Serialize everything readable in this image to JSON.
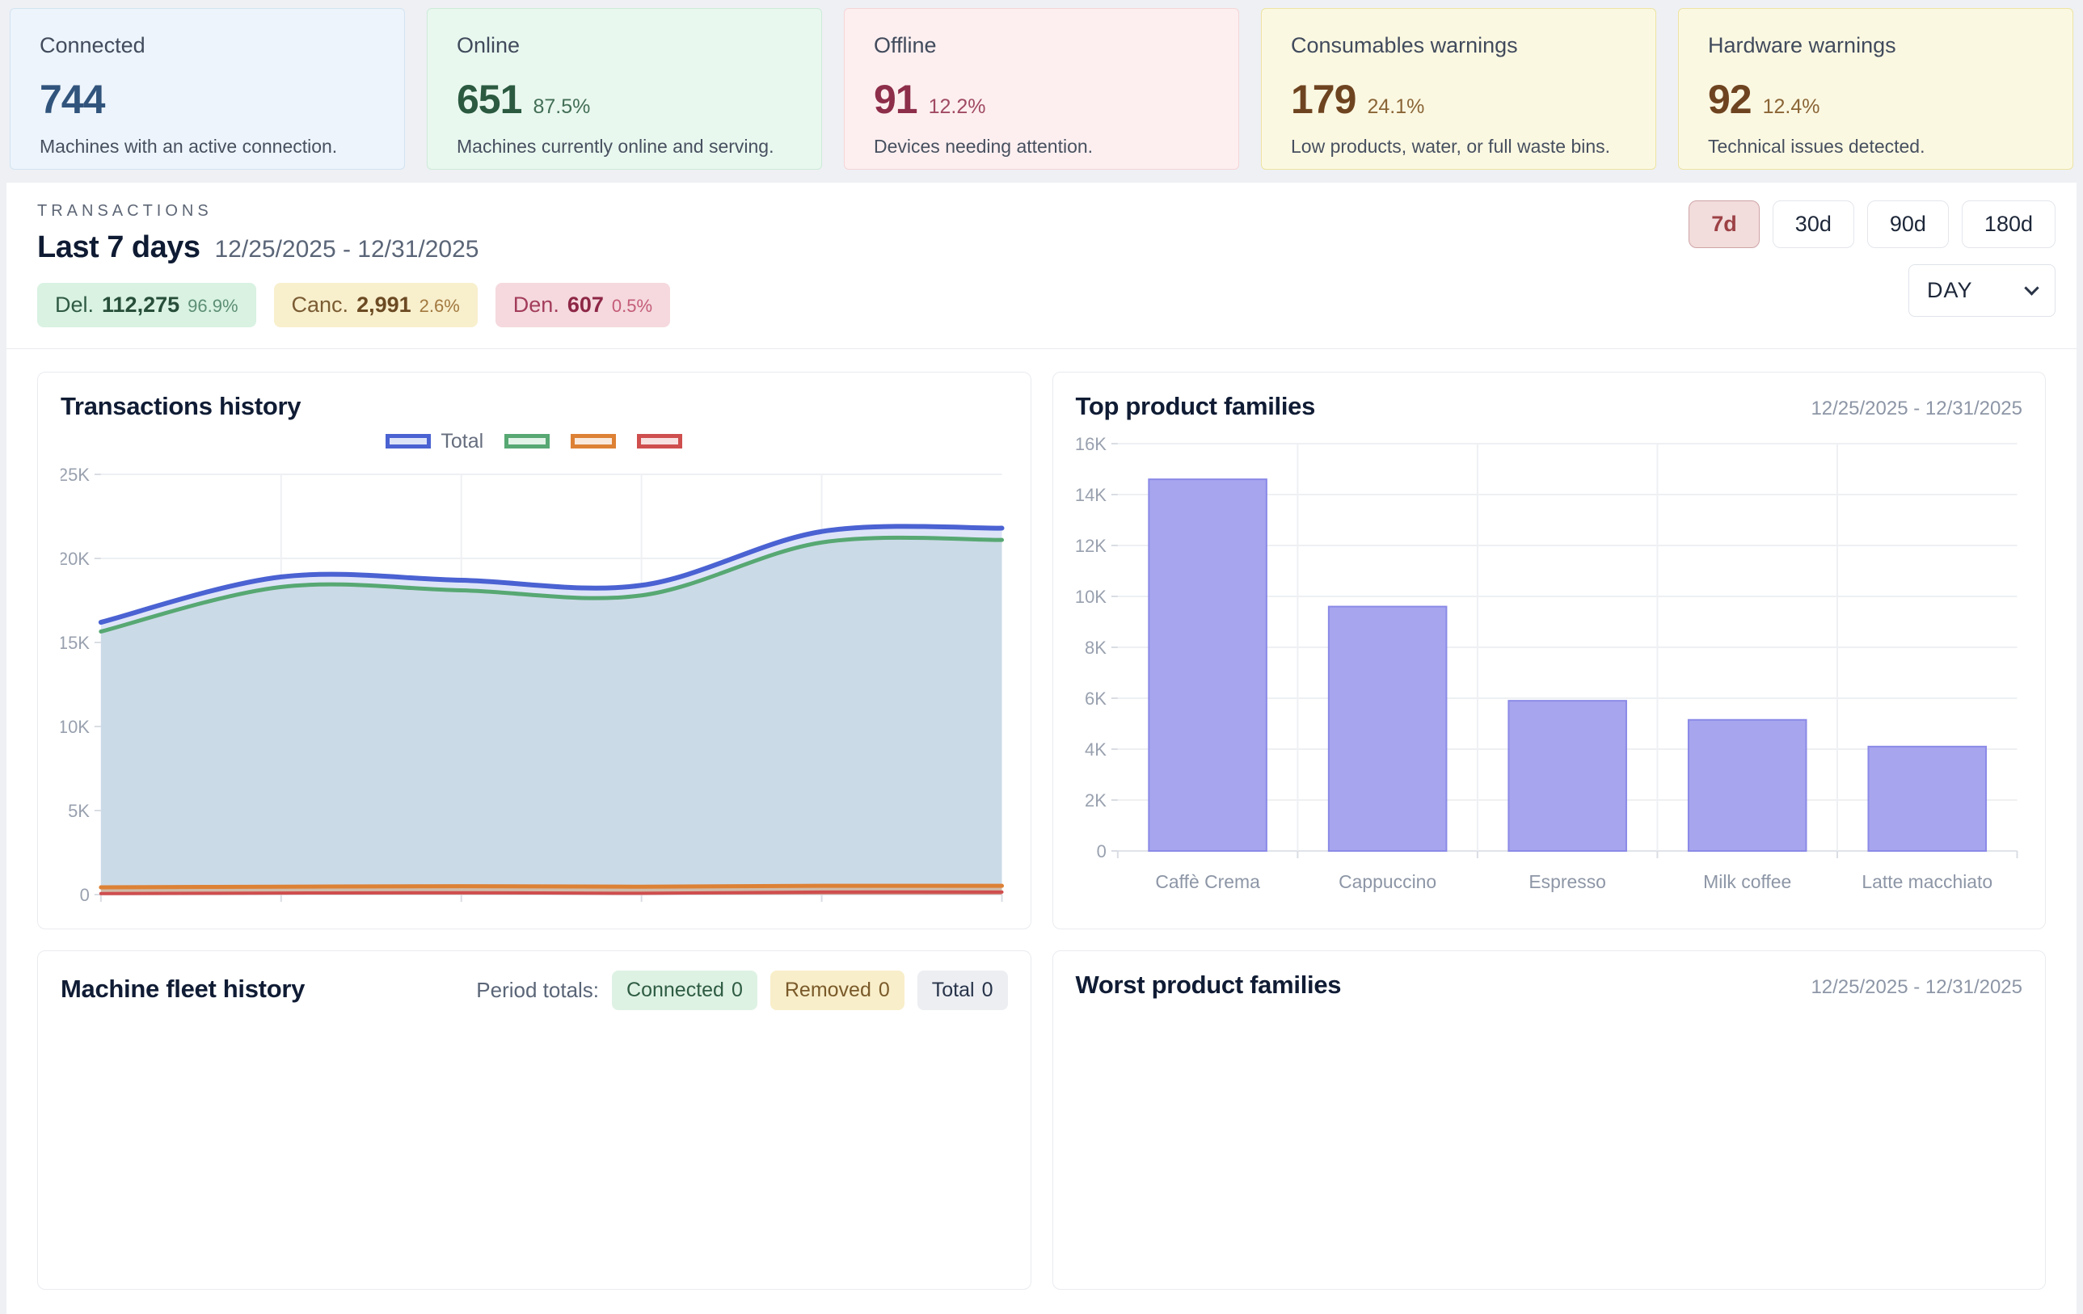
{
  "stats": [
    {
      "label": "Connected",
      "value": "744",
      "pct": "",
      "desc": "Machines with an active connection.",
      "colors": {
        "bg": "#edf4fb",
        "border": "#d3e3f1",
        "value": "#31547c",
        "pct": "#31547c"
      }
    },
    {
      "label": "Online",
      "value": "651",
      "pct": "87.5%",
      "desc": "Machines currently online and serving.",
      "colors": {
        "bg": "#e9f8ef",
        "border": "#cdebd8",
        "value": "#2b5a40",
        "pct": "#426e55"
      }
    },
    {
      "label": "Offline",
      "value": "91",
      "pct": "12.2%",
      "desc": "Devices needing attention.",
      "colors": {
        "bg": "#fdeff0",
        "border": "#f5d5d7",
        "value": "#8d2e4a",
        "pct": "#a04a63"
      }
    },
    {
      "label": "Consumables warnings",
      "value": "179",
      "pct": "24.1%",
      "desc": "Low products, water, or full waste bins.",
      "colors": {
        "bg": "#fbf8e2",
        "border": "#ede4a2",
        "value": "#6e4420",
        "pct": "#8a6536"
      }
    },
    {
      "label": "Hardware warnings",
      "value": "92",
      "pct": "12.4%",
      "desc": "Technical issues detected.",
      "colors": {
        "bg": "#fbf8e2",
        "border": "#ede4a2",
        "value": "#6e4420",
        "pct": "#8a6536"
      }
    }
  ],
  "transactions_header": {
    "eyebrow": "TRANSACTIONS",
    "title": "Last 7 days",
    "date_range": "12/25/2025 - 12/31/2025",
    "badges": [
      {
        "label": "Del.",
        "value": "112,275",
        "pct": "96.9%",
        "colors": {
          "bg": "#d9f2e2",
          "label": "#2f5a43",
          "value": "#274e39",
          "pct": "#5d8f74"
        }
      },
      {
        "label": "Canc.",
        "value": "2,991",
        "pct": "2.6%",
        "colors": {
          "bg": "#f8efcd",
          "label": "#7a5c33",
          "value": "#6b4a23",
          "pct": "#a2793f"
        }
      },
      {
        "label": "Den.",
        "value": "607",
        "pct": "0.5%",
        "colors": {
          "bg": "#f5d9de",
          "label": "#a33c5c",
          "value": "#8e2747",
          "pct": "#c45c77"
        }
      }
    ],
    "range_buttons": [
      {
        "label": "7d",
        "active": true
      },
      {
        "label": "30d",
        "active": false
      },
      {
        "label": "90d",
        "active": false
      },
      {
        "label": "180d",
        "active": false
      }
    ],
    "granularity": {
      "value": "DAY"
    }
  },
  "chart_data": [
    {
      "id": "transactions_history",
      "type": "area",
      "title": "Transactions history",
      "x": [
        1,
        2,
        3,
        4,
        5,
        6
      ],
      "x_axis_labels_visible": false,
      "series": [
        {
          "name": "Total",
          "color": "#4a62d2",
          "fill": "#dee4f8",
          "legend_fill": "#dee4f8",
          "width": 6,
          "values": [
            16200,
            18900,
            18700,
            18400,
            21600,
            21800
          ]
        },
        {
          "name": "",
          "color": "#57a873",
          "fill": "#cbdae7",
          "legend_fill": "#e3f3e8",
          "width": 5,
          "values": [
            15650,
            18300,
            18100,
            17800,
            20950,
            21100
          ]
        },
        {
          "name": "",
          "color": "#dd8135",
          "fill": "rgba(221,129,53,0.35)",
          "legend_fill": "#f9e9dc",
          "width": 5,
          "values": [
            430,
            470,
            500,
            470,
            520,
            520
          ]
        },
        {
          "name": "",
          "color": "#cf4e4e",
          "fill": "rgba(207,78,78,0.35)",
          "legend_fill": "#f8e1e1",
          "width": 4,
          "values": [
            60,
            90,
            110,
            80,
            150,
            150
          ]
        }
      ],
      "ylim": [
        0,
        25000
      ],
      "ytick_values": [
        0,
        5000,
        10000,
        15000,
        20000,
        25000
      ],
      "ytick_labels": [
        "0",
        "5K",
        "10K",
        "15K",
        "20K",
        "25K"
      ],
      "grid": true,
      "legend_position": "top"
    },
    {
      "id": "top_product_families",
      "type": "bar",
      "title": "Top product families",
      "date_range": "12/25/2025 - 12/31/2025",
      "categories": [
        "Caffè Crema",
        "Cappuccino",
        "Espresso",
        "Milk coffee",
        "Latte macchiato"
      ],
      "values": [
        14600,
        9600,
        5900,
        5150,
        4100
      ],
      "bar_color": "#a6a5ee",
      "bar_border": "#8b8ae7",
      "ylim": [
        0,
        16000
      ],
      "ytick_values": [
        0,
        2000,
        4000,
        6000,
        8000,
        10000,
        12000,
        14000,
        16000
      ],
      "ytick_labels": [
        "0",
        "2K",
        "4K",
        "6K",
        "8K",
        "10K",
        "12K",
        "14K",
        "16K"
      ],
      "grid": true
    }
  ],
  "fleet_history": {
    "title": "Machine fleet history",
    "period_totals_label": "Period totals:",
    "badges": [
      {
        "label": "Connected",
        "value": "0",
        "colors": {
          "bg": "#def2e4",
          "text": "#2e5c42"
        }
      },
      {
        "label": "Removed",
        "value": "0",
        "colors": {
          "bg": "#f8eec9",
          "text": "#7a5a2a"
        }
      },
      {
        "label": "Total",
        "value": "0",
        "colors": {
          "bg": "#eceef2",
          "text": "#273349"
        }
      }
    ]
  },
  "worst_families": {
    "title": "Worst product families",
    "date_range": "12/25/2025 - 12/31/2025"
  }
}
